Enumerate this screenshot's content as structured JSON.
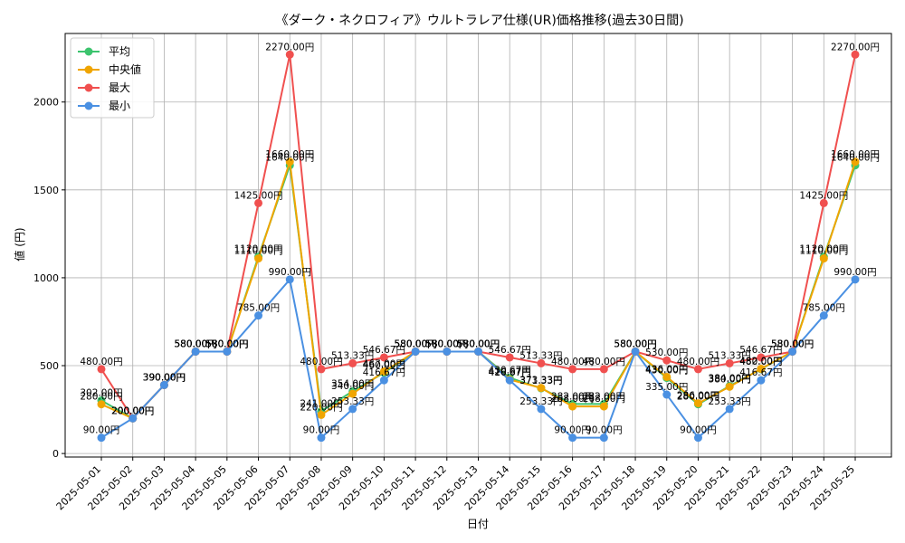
{
  "chart_data": {
    "type": "line",
    "title": "《ダーク・ネクロフィア》ウルトラレア仕様(UR)価格推移(過去30日間)",
    "xlabel": "日付",
    "ylabel": "値 (円)",
    "ylim": [
      -20,
      2390
    ],
    "yticks": [
      0,
      500,
      1000,
      1500,
      2000
    ],
    "grid": true,
    "legend_position": "top-left",
    "value_suffix": "円",
    "categories": [
      "2025-05-01",
      "2025-05-02",
      "2025-05-03",
      "2025-05-04",
      "2025-05-05",
      "2025-05-06",
      "2025-05-07",
      "2025-05-08",
      "2025-05-09",
      "2025-05-10",
      "2025-05-11",
      "2025-05-12",
      "2025-05-13",
      "2025-05-14",
      "2025-05-15",
      "2025-05-16",
      "2025-05-17",
      "2025-05-18",
      "2025-05-19",
      "2025-05-20",
      "2025-05-21",
      "2025-05-22",
      "2025-05-23",
      "2025-05-24",
      "2025-05-25"
    ],
    "series": [
      {
        "name": "平均",
        "color": "#3cc46e",
        "values": [
          302.0,
          200.0,
          390.0,
          580.0,
          580.0,
          1120.0,
          1640.0,
          241.0,
          354.0,
          460.0,
          580.0,
          580.0,
          580.0,
          430.67,
          371.33,
          282.0,
          282.0,
          580.0,
          430.0,
          280.0,
          384.0,
          480.0,
          580.0,
          1120.0,
          1640.0
        ]
      },
      {
        "name": "中央値",
        "color": "#f0a500",
        "values": [
          280.0,
          200.0,
          390.0,
          580.0,
          580.0,
          1110.0,
          1660.0,
          220.0,
          340.0,
          467.0,
          580.0,
          580.0,
          580.0,
          420.67,
          373.33,
          268.0,
          268.0,
          580.0,
          436.0,
          286.0,
          380.0,
          482.0,
          580.0,
          1110.0,
          1660.0
        ]
      },
      {
        "name": "最大",
        "color": "#f0504f",
        "values": [
          480.0,
          200.0,
          390.0,
          580.0,
          580.0,
          1425.0,
          2270.0,
          480.0,
          513.33,
          546.67,
          580.0,
          580.0,
          580.0,
          546.67,
          513.33,
          480.0,
          480.0,
          580.0,
          530.0,
          480.0,
          513.33,
          546.67,
          580.0,
          1425.0,
          2270.0
        ]
      },
      {
        "name": "最小",
        "color": "#4a90e2",
        "values": [
          90.0,
          200.0,
          390.0,
          580.0,
          580.0,
          785.0,
          990.0,
          90.0,
          253.33,
          416.67,
          580.0,
          580.0,
          580.0,
          416.67,
          253.33,
          90.0,
          90.0,
          580.0,
          335.0,
          90.0,
          253.33,
          416.67,
          580.0,
          785.0,
          990.0
        ]
      }
    ]
  }
}
